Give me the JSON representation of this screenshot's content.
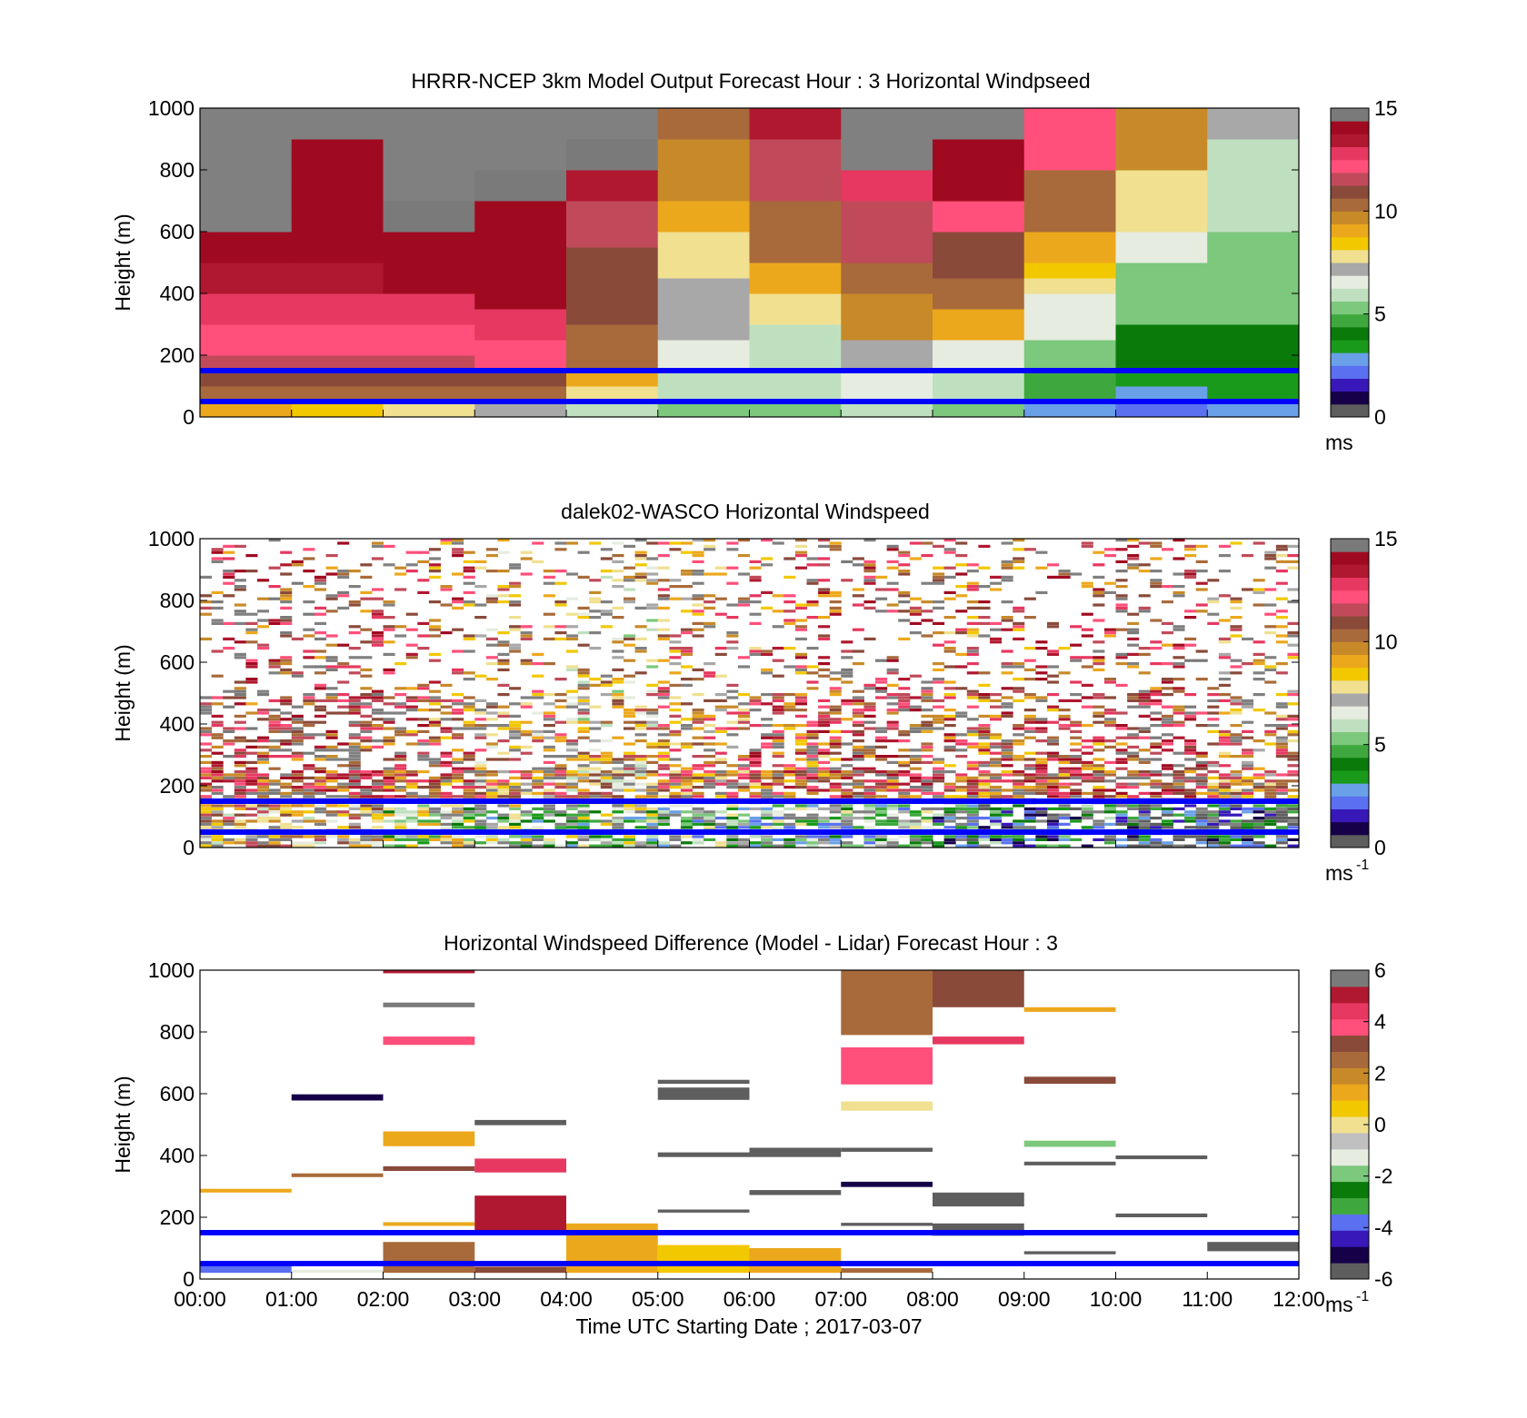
{
  "colors": {
    "wind_scale": [
      "#5e5e5e",
      "#160048",
      "#3818b8",
      "#5a70f0",
      "#6aa0e8",
      "#1a9a1a",
      "#0a7a0a",
      "#3ea83e",
      "#7cc87c",
      "#bfe0bf",
      "#e6ece0",
      "#a8a8a8",
      "#f0e090",
      "#f2c800",
      "#eca81c",
      "#c88a28",
      "#a86a3a",
      "#8a4a3a",
      "#c04a5a",
      "#ff4f7a",
      "#e63860",
      "#b01830",
      "#a00a20",
      "#7a7a7a"
    ],
    "diff_scale": [
      "#5e5e5e",
      "#160048",
      "#3818b8",
      "#5a70f0",
      "#3ea83e",
      "#0a7a0a",
      "#7cc87c",
      "#e6ece0",
      "#c0c0c0",
      "#f0e090",
      "#f2c800",
      "#eca81c",
      "#c88a28",
      "#a86a3a",
      "#8a4a3a",
      "#ff4f7a",
      "#e63860",
      "#b01830",
      "#7a7a7a"
    ],
    "hline": "#0000ff",
    "missing_model": "#808080"
  },
  "xaxis": {
    "ticks": [
      "00:00",
      "01:00",
      "02:00",
      "03:00",
      "04:00",
      "05:00",
      "06:00",
      "07:00",
      "08:00",
      "09:00",
      "10:00",
      "11:00",
      "12:00"
    ],
    "label": "Time UTC  Starting Date ; 2017-03-07"
  },
  "yaxis": {
    "ticks": [
      "0",
      "200",
      "400",
      "600",
      "800",
      "1000"
    ],
    "label": "Height (m)"
  },
  "panels": [
    {
      "title": "HRRR-NCEP 3km Model Output   Forecast Hour : 3 Horizontal Windpseed",
      "colorbar": {
        "ticks": [
          "0",
          "5",
          "10",
          "15"
        ],
        "unit": "ms",
        "unit_sup": ""
      }
    },
    {
      "title": "dalek02-WASCO  Horizontal Windspeed",
      "colorbar": {
        "ticks": [
          "0",
          "5",
          "10",
          "15"
        ],
        "unit": "ms",
        "unit_sup": "-1"
      }
    },
    {
      "title": "Horizontal Windspeed Difference (Model - Lidar) Forecast Hour : 3",
      "colorbar": {
        "ticks": [
          "-6",
          "-4",
          "-2",
          "0",
          "2",
          "4",
          "6"
        ],
        "unit": "ms",
        "unit_sup": "-1"
      }
    }
  ],
  "chart_data": [
    {
      "type": "heatmap",
      "title": "HRRR-NCEP 3km Model Output   Forecast Hour : 3 Horizontal Windpseed",
      "xlabel": "",
      "ylabel": "Height (m)",
      "xlim": [
        0,
        12
      ],
      "ylim": [
        0,
        1000
      ],
      "clim": [
        0,
        15
      ],
      "colorbar_unit": "ms",
      "hour_columns": [
        {
          "hour": 0,
          "missing_above": 600,
          "speeds": [
            [
              0,
              9
            ],
            [
              50,
              10.5
            ],
            [
              100,
              11
            ],
            [
              150,
              11.5
            ],
            [
              200,
              12
            ],
            [
              300,
              12.5
            ],
            [
              400,
              13.5
            ],
            [
              500,
              14
            ],
            [
              600,
              null
            ]
          ]
        },
        {
          "hour": 1,
          "missing_above": 900,
          "speeds": [
            [
              0,
              8.5
            ],
            [
              50,
              10.5
            ],
            [
              100,
              11
            ],
            [
              150,
              11.5
            ],
            [
              200,
              12
            ],
            [
              300,
              12.5
            ],
            [
              400,
              13.5
            ],
            [
              500,
              13.8
            ],
            [
              600,
              14
            ],
            [
              800,
              14.3
            ],
            [
              900,
              null
            ]
          ]
        },
        {
          "hour": 2,
          "missing_above": 700,
          "speeds": [
            [
              0,
              8
            ],
            [
              50,
              10.5
            ],
            [
              100,
              11
            ],
            [
              150,
              11.5
            ],
            [
              200,
              12
            ],
            [
              300,
              13
            ],
            [
              400,
              14
            ],
            [
              500,
              14.3
            ],
            [
              600,
              14.6
            ],
            [
              700,
              null
            ]
          ]
        },
        {
          "hour": 3,
          "missing_above": 800,
          "speeds": [
            [
              0,
              7
            ],
            [
              50,
              10
            ],
            [
              100,
              11
            ],
            [
              150,
              12
            ],
            [
              250,
              13
            ],
            [
              350,
              14
            ],
            [
              500,
              14.2
            ],
            [
              700,
              14.8
            ],
            [
              800,
              null
            ]
          ]
        },
        {
          "hour": 4,
          "missing_above": 900,
          "speeds": [
            [
              0,
              6
            ],
            [
              50,
              8
            ],
            [
              100,
              9
            ],
            [
              150,
              10
            ],
            [
              300,
              10.8
            ],
            [
              550,
              11.5
            ],
            [
              700,
              13.5
            ],
            [
              800,
              14.5
            ],
            [
              900,
              null
            ]
          ]
        },
        {
          "hour": 5,
          "missing_above": 1000,
          "speeds": [
            [
              0,
              5
            ],
            [
              50,
              6
            ],
            [
              150,
              6.6
            ],
            [
              250,
              7
            ],
            [
              450,
              7.5
            ],
            [
              500,
              8
            ],
            [
              600,
              9
            ],
            [
              700,
              9.5
            ],
            [
              900,
              10.5
            ]
          ]
        },
        {
          "hour": 6,
          "missing_above": 1000,
          "speeds": [
            [
              0,
              5.5
            ],
            [
              50,
              6
            ],
            [
              150,
              6.2
            ],
            [
              300,
              7.5
            ],
            [
              400,
              9
            ],
            [
              500,
              10
            ],
            [
              700,
              11.5
            ],
            [
              900,
              13.5
            ]
          ]
        },
        {
          "hour": 7,
          "missing_above": 800,
          "speeds": [
            [
              0,
              5.8
            ],
            [
              50,
              6.5
            ],
            [
              150,
              7
            ],
            [
              250,
              9.5
            ],
            [
              400,
              10.5
            ],
            [
              500,
              11.5
            ],
            [
              700,
              13
            ],
            [
              800,
              null
            ]
          ]
        },
        {
          "hour": 8,
          "missing_above": 900,
          "speeds": [
            [
              0,
              5.5
            ],
            [
              50,
              6
            ],
            [
              150,
              6.5
            ],
            [
              250,
              9
            ],
            [
              350,
              10
            ],
            [
              450,
              10.8
            ],
            [
              600,
              12
            ],
            [
              700,
              13.8
            ],
            [
              900,
              14.8
            ]
          ]
        },
        {
          "hour": 9,
          "missing_above": 1000,
          "speeds": [
            [
              0,
              3
            ],
            [
              50,
              4.5
            ],
            [
              150,
              5.5
            ],
            [
              250,
              6.5
            ],
            [
              400,
              7.5
            ],
            [
              450,
              8.5
            ],
            [
              500,
              9.2
            ],
            [
              600,
              10.5
            ],
            [
              800,
              12
            ]
          ]
        },
        {
          "hour": 10,
          "missing_above": 1000,
          "speeds": [
            [
              0,
              2
            ],
            [
              50,
              2.8
            ],
            [
              100,
              3.5
            ],
            [
              150,
              4
            ],
            [
              300,
              5
            ],
            [
              400,
              5.5
            ],
            [
              500,
              6.5
            ],
            [
              600,
              8
            ],
            [
              800,
              9.5
            ]
          ]
        },
        {
          "hour": 11,
          "missing_above": 1000,
          "speeds": [
            [
              0,
              2.5
            ],
            [
              50,
              3.5
            ],
            [
              150,
              4.2
            ],
            [
              300,
              5
            ],
            [
              400,
              5.5
            ],
            [
              600,
              6
            ],
            [
              900,
              7
            ]
          ]
        }
      ],
      "reference_heights": [
        50,
        150
      ]
    },
    {
      "type": "heatmap",
      "title": "dalek02-WASCO  Horizontal Windspeed",
      "xlabel": "",
      "ylabel": "Height (m)",
      "xlim": [
        0,
        12
      ],
      "ylim": [
        0,
        1000
      ],
      "clim": [
        0,
        15
      ],
      "colorbar_unit": "ms-1",
      "hourly_speed_profile": [
        {
          "hour": 0,
          "low": 9,
          "mid": 12
        },
        {
          "hour": 1,
          "low": 9,
          "mid": 12
        },
        {
          "hour": 2,
          "low": 6.5,
          "mid": 11
        },
        {
          "hour": 3,
          "low": 6,
          "mid": 9.5
        },
        {
          "hour": 4,
          "low": 5.5,
          "mid": 8.5
        },
        {
          "hour": 5,
          "low": 5,
          "mid": 10
        },
        {
          "hour": 6,
          "low": 5,
          "mid": 11
        },
        {
          "hour": 7,
          "low": 5,
          "mid": 12
        },
        {
          "hour": 8,
          "low": 3,
          "mid": 11
        },
        {
          "hour": 9,
          "low": 3,
          "mid": 11.5
        },
        {
          "hour": 10,
          "low": 2,
          "mid": 12
        },
        {
          "hour": 11,
          "low": 2,
          "mid": 10
        }
      ],
      "reference_heights": [
        50,
        150
      ]
    },
    {
      "type": "heatmap",
      "title": "Horizontal Windspeed Difference (Model - Lidar) Forecast Hour : 3",
      "xlabel": "Time UTC  Starting Date ; 2017-03-07",
      "ylabel": "Height (m)",
      "xlim": [
        0,
        12
      ],
      "ylim": [
        0,
        1000
      ],
      "clim": [
        -6,
        6
      ],
      "colorbar_unit": "ms-1",
      "segments": [
        {
          "t0": 0,
          "t1": 1,
          "z0": 20,
          "z1": 45,
          "v": -3.5
        },
        {
          "t0": 0,
          "t1": 1,
          "z0": 280,
          "z1": 292,
          "v": 1.2
        },
        {
          "t0": 1,
          "t1": 2,
          "z0": 330,
          "z1": 342,
          "v": 2.5
        },
        {
          "t0": 1,
          "t1": 2,
          "z0": 578,
          "z1": 598,
          "v": -5
        },
        {
          "t0": 1,
          "t1": 2,
          "z0": 20,
          "z1": 30,
          "v": -1.5
        },
        {
          "t0": 2,
          "t1": 3,
          "z0": 20,
          "z1": 120,
          "v": 2.8
        },
        {
          "t0": 2,
          "t1": 3,
          "z0": 172,
          "z1": 184,
          "v": 1.2
        },
        {
          "t0": 2,
          "t1": 3,
          "z0": 350,
          "z1": 365,
          "v": 3
        },
        {
          "t0": 2,
          "t1": 3,
          "z0": 430,
          "z1": 478,
          "v": 1.5
        },
        {
          "t0": 2,
          "t1": 3,
          "z0": 758,
          "z1": 785,
          "v": 4
        },
        {
          "t0": 2,
          "t1": 3,
          "z0": 880,
          "z1": 895,
          "v": 5.5
        },
        {
          "t0": 2,
          "t1": 3,
          "z0": 990,
          "z1": 1000,
          "v": 5
        },
        {
          "t0": 3,
          "t1": 4,
          "z0": 20,
          "z1": 40,
          "v": 3
        },
        {
          "t0": 3,
          "t1": 4,
          "z0": 150,
          "z1": 270,
          "v": 5
        },
        {
          "t0": 3,
          "t1": 4,
          "z0": 345,
          "z1": 390,
          "v": 4.2
        },
        {
          "t0": 3,
          "t1": 4,
          "z0": 498,
          "z1": 515,
          "v": -5.8
        },
        {
          "t0": 4,
          "t1": 5,
          "z0": 20,
          "z1": 180,
          "v": 1.2
        },
        {
          "t0": 5,
          "t1": 6,
          "z0": 20,
          "z1": 110,
          "v": 0.5
        },
        {
          "t0": 5,
          "t1": 6,
          "z0": 215,
          "z1": 225,
          "v": -5.8
        },
        {
          "t0": 5,
          "t1": 6,
          "z0": 395,
          "z1": 410,
          "v": -6
        },
        {
          "t0": 5,
          "t1": 6,
          "z0": 580,
          "z1": 620,
          "v": -6
        },
        {
          "t0": 5,
          "t1": 6,
          "z0": 632,
          "z1": 645,
          "v": -5.8
        },
        {
          "t0": 6,
          "t1": 7,
          "z0": 20,
          "z1": 100,
          "v": 1.3
        },
        {
          "t0": 6,
          "t1": 7,
          "z0": 272,
          "z1": 288,
          "v": -6
        },
        {
          "t0": 6,
          "t1": 7,
          "z0": 395,
          "z1": 425,
          "v": -6
        },
        {
          "t0": 7,
          "t1": 8,
          "z0": 20,
          "z1": 35,
          "v": 2.5
        },
        {
          "t0": 7,
          "t1": 8,
          "z0": 172,
          "z1": 182,
          "v": -6
        },
        {
          "t0": 7,
          "t1": 8,
          "z0": 298,
          "z1": 315,
          "v": -5
        },
        {
          "t0": 7,
          "t1": 8,
          "z0": 412,
          "z1": 425,
          "v": -5.8
        },
        {
          "t0": 7,
          "t1": 8,
          "z0": 545,
          "z1": 575,
          "v": -0.3
        },
        {
          "t0": 7,
          "t1": 8,
          "z0": 630,
          "z1": 750,
          "v": 3.5
        },
        {
          "t0": 7,
          "t1": 8,
          "z0": 790,
          "z1": 1000,
          "v": 2.5
        },
        {
          "t0": 8,
          "t1": 9,
          "z0": 140,
          "z1": 180,
          "v": -6
        },
        {
          "t0": 8,
          "t1": 9,
          "z0": 235,
          "z1": 280,
          "v": -6
        },
        {
          "t0": 8,
          "t1": 9,
          "z0": 760,
          "z1": 785,
          "v": 4.3
        },
        {
          "t0": 8,
          "t1": 9,
          "z0": 880,
          "z1": 1000,
          "v": 3.2
        },
        {
          "t0": 9,
          "t1": 10,
          "z0": 80,
          "z1": 90,
          "v": -6
        },
        {
          "t0": 9,
          "t1": 10,
          "z0": 368,
          "z1": 380,
          "v": -5.8
        },
        {
          "t0": 9,
          "t1": 10,
          "z0": 428,
          "z1": 448,
          "v": -2
        },
        {
          "t0": 9,
          "t1": 10,
          "z0": 632,
          "z1": 655,
          "v": 3
        },
        {
          "t0": 9,
          "t1": 10,
          "z0": 865,
          "z1": 880,
          "v": 1.5
        },
        {
          "t0": 10,
          "t1": 11,
          "z0": 200,
          "z1": 212,
          "v": -6
        },
        {
          "t0": 10,
          "t1": 11,
          "z0": 388,
          "z1": 400,
          "v": -6
        },
        {
          "t0": 11,
          "t1": 12,
          "z0": 90,
          "z1": 120,
          "v": -6
        }
      ],
      "reference_heights": [
        50,
        150
      ]
    }
  ]
}
